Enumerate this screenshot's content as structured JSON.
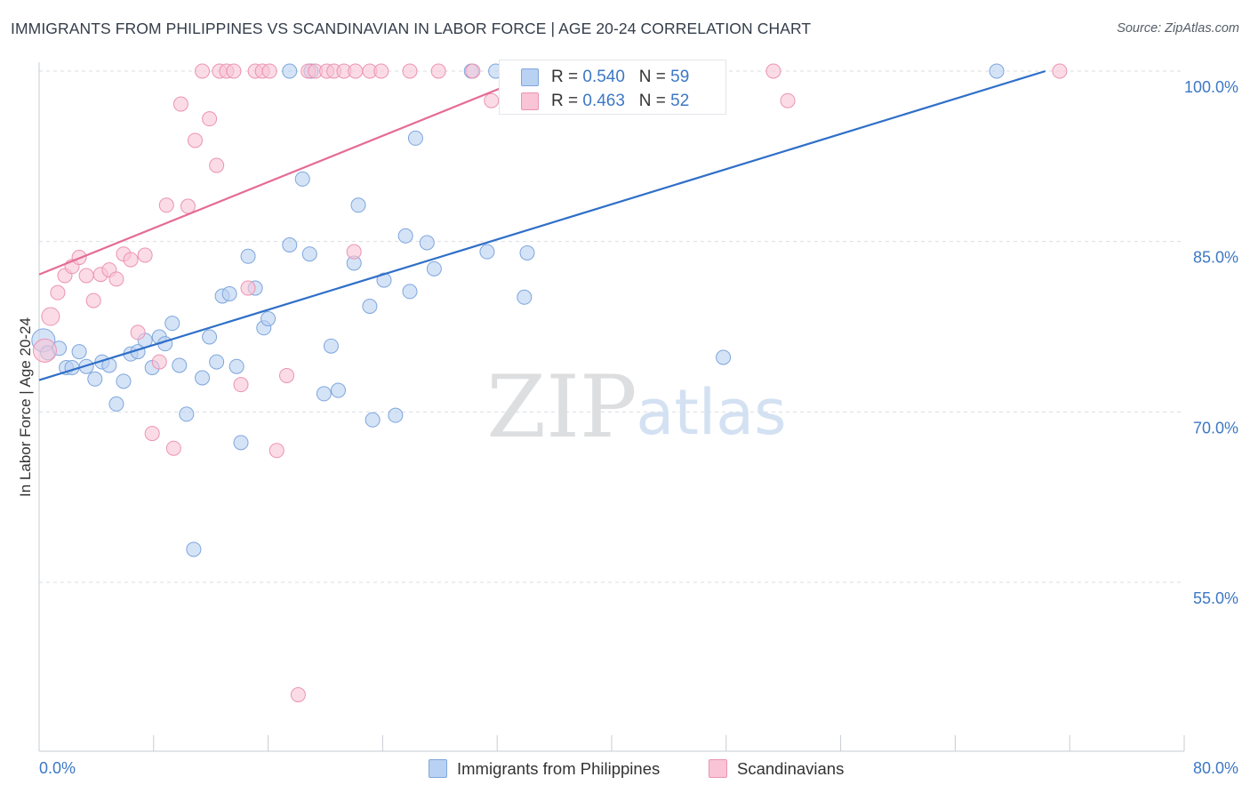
{
  "header": {
    "title": "IMMIGRANTS FROM PHILIPPINES VS SCANDINAVIAN IN LABOR FORCE | AGE 20-24 CORRELATION CHART",
    "source": "Source: ZipAtlas.com"
  },
  "watermark": {
    "zip": "ZIP",
    "atlas": "atlas"
  },
  "legend": {
    "rows": [
      {
        "r_label": "R = ",
        "r_value": "0.540",
        "n_label": "N = ",
        "n_value": "59"
      },
      {
        "r_label": "R = ",
        "r_value": "0.463",
        "n_label": "N = ",
        "n_value": "52"
      }
    ]
  },
  "bottom_legend": {
    "items": [
      {
        "label": "Immigrants from Philippines"
      },
      {
        "label": "Scandinavians"
      }
    ]
  },
  "colors": {
    "blue_fill": "#b9d1f2",
    "blue_stroke": "#7ea6dc",
    "blue_line": "#2f6fc8",
    "pink_fill": "#f8c4d6",
    "pink_stroke": "#ec93b3",
    "pink_line": "#e56b95",
    "axis_label": "#3d78c4",
    "grid": "#d9dde2"
  },
  "chart_data": {
    "type": "scatter",
    "title": "IMMIGRANTS FROM PHILIPPINES VS SCANDINAVIAN IN LABOR FORCE | AGE 20-24 CORRELATION CHART",
    "xlabel": "",
    "ylabel": "In Labor Force | Age 20-24",
    "xlim": [
      0,
      80
    ],
    "ylim": [
      40,
      103
    ],
    "x_tick_labels": [
      "0.0%",
      "80.0%"
    ],
    "y_ticks": [
      55,
      70,
      85,
      100
    ],
    "y_tick_labels": [
      "55.0%",
      "70.0%",
      "85.0%",
      "100.0%"
    ],
    "legend_position": "top-center",
    "series": [
      {
        "name": "Immigrants from Philippines",
        "color": "blue",
        "r": 0.54,
        "n": 59,
        "trend": {
          "x0": 0,
          "y0": 72.8,
          "x1": 70.3,
          "y1": 100.0
        },
        "points": [
          [
            0.3,
            76.3
          ],
          [
            0.6,
            75.2
          ],
          [
            1.4,
            75.6
          ],
          [
            1.9,
            73.9
          ],
          [
            2.3,
            73.9
          ],
          [
            2.8,
            75.3
          ],
          [
            3.3,
            74.0
          ],
          [
            3.9,
            72.9
          ],
          [
            4.4,
            74.4
          ],
          [
            4.9,
            74.1
          ],
          [
            5.4,
            70.7
          ],
          [
            5.9,
            72.7
          ],
          [
            6.4,
            75.1
          ],
          [
            6.9,
            75.3
          ],
          [
            7.4,
            76.3
          ],
          [
            7.9,
            73.9
          ],
          [
            8.4,
            76.6
          ],
          [
            8.8,
            76.0
          ],
          [
            9.3,
            77.8
          ],
          [
            9.8,
            74.1
          ],
          [
            10.3,
            69.8
          ],
          [
            10.8,
            57.9
          ],
          [
            11.4,
            73.0
          ],
          [
            11.9,
            76.6
          ],
          [
            12.4,
            74.4
          ],
          [
            12.8,
            80.2
          ],
          [
            13.3,
            80.4
          ],
          [
            13.8,
            74.0
          ],
          [
            14.1,
            67.3
          ],
          [
            14.6,
            83.7
          ],
          [
            15.1,
            80.9
          ],
          [
            15.7,
            77.4
          ],
          [
            16.0,
            78.2
          ],
          [
            17.5,
            100.0
          ],
          [
            17.5,
            84.7
          ],
          [
            18.4,
            90.5
          ],
          [
            18.9,
            83.9
          ],
          [
            19.0,
            100.0
          ],
          [
            19.9,
            71.6
          ],
          [
            20.4,
            75.8
          ],
          [
            20.9,
            71.9
          ],
          [
            22.0,
            83.1
          ],
          [
            22.3,
            88.2
          ],
          [
            23.1,
            79.3
          ],
          [
            23.3,
            69.3
          ],
          [
            24.1,
            81.6
          ],
          [
            24.9,
            69.7
          ],
          [
            25.6,
            85.5
          ],
          [
            25.9,
            80.6
          ],
          [
            26.3,
            94.1
          ],
          [
            27.1,
            84.9
          ],
          [
            27.6,
            82.6
          ],
          [
            30.2,
            100.0
          ],
          [
            31.3,
            84.1
          ],
          [
            31.9,
            100.0
          ],
          [
            33.9,
            80.1
          ],
          [
            34.1,
            84.0
          ],
          [
            47.8,
            74.8
          ],
          [
            66.9,
            100.0
          ]
        ]
      },
      {
        "name": "Scandinavians",
        "color": "pink",
        "r": 0.463,
        "n": 52,
        "trend": {
          "x0": 0,
          "y0": 82.1,
          "x1": 35.2,
          "y1": 100.0
        },
        "points": [
          [
            0.4,
            75.4
          ],
          [
            0.8,
            78.4
          ],
          [
            1.3,
            80.5
          ],
          [
            1.8,
            82.0
          ],
          [
            2.3,
            82.8
          ],
          [
            2.8,
            83.6
          ],
          [
            3.3,
            82.0
          ],
          [
            3.8,
            79.8
          ],
          [
            4.3,
            82.1
          ],
          [
            4.9,
            82.5
          ],
          [
            5.4,
            81.7
          ],
          [
            5.9,
            83.9
          ],
          [
            6.4,
            83.4
          ],
          [
            6.9,
            77.0
          ],
          [
            7.4,
            83.8
          ],
          [
            7.9,
            68.1
          ],
          [
            8.4,
            74.4
          ],
          [
            8.9,
            88.2
          ],
          [
            9.4,
            66.8
          ],
          [
            9.9,
            97.1
          ],
          [
            10.4,
            88.1
          ],
          [
            10.9,
            93.9
          ],
          [
            11.4,
            100.0
          ],
          [
            11.9,
            95.8
          ],
          [
            12.4,
            91.7
          ],
          [
            12.6,
            100.0
          ],
          [
            13.1,
            100.0
          ],
          [
            13.6,
            100.0
          ],
          [
            14.1,
            72.4
          ],
          [
            14.6,
            80.9
          ],
          [
            15.1,
            100.0
          ],
          [
            15.6,
            100.0
          ],
          [
            16.1,
            100.0
          ],
          [
            16.6,
            66.6
          ],
          [
            17.3,
            73.2
          ],
          [
            18.1,
            45.1
          ],
          [
            18.8,
            100.0
          ],
          [
            19.3,
            100.0
          ],
          [
            20.1,
            100.0
          ],
          [
            20.6,
            100.0
          ],
          [
            21.3,
            100.0
          ],
          [
            22.1,
            100.0
          ],
          [
            22.0,
            84.1
          ],
          [
            23.1,
            100.0
          ],
          [
            23.9,
            100.0
          ],
          [
            25.9,
            100.0
          ],
          [
            27.9,
            100.0
          ],
          [
            30.3,
            100.0
          ],
          [
            31.6,
            97.4
          ],
          [
            51.3,
            100.0
          ],
          [
            52.3,
            97.4
          ],
          [
            71.3,
            100.0
          ]
        ]
      }
    ]
  }
}
